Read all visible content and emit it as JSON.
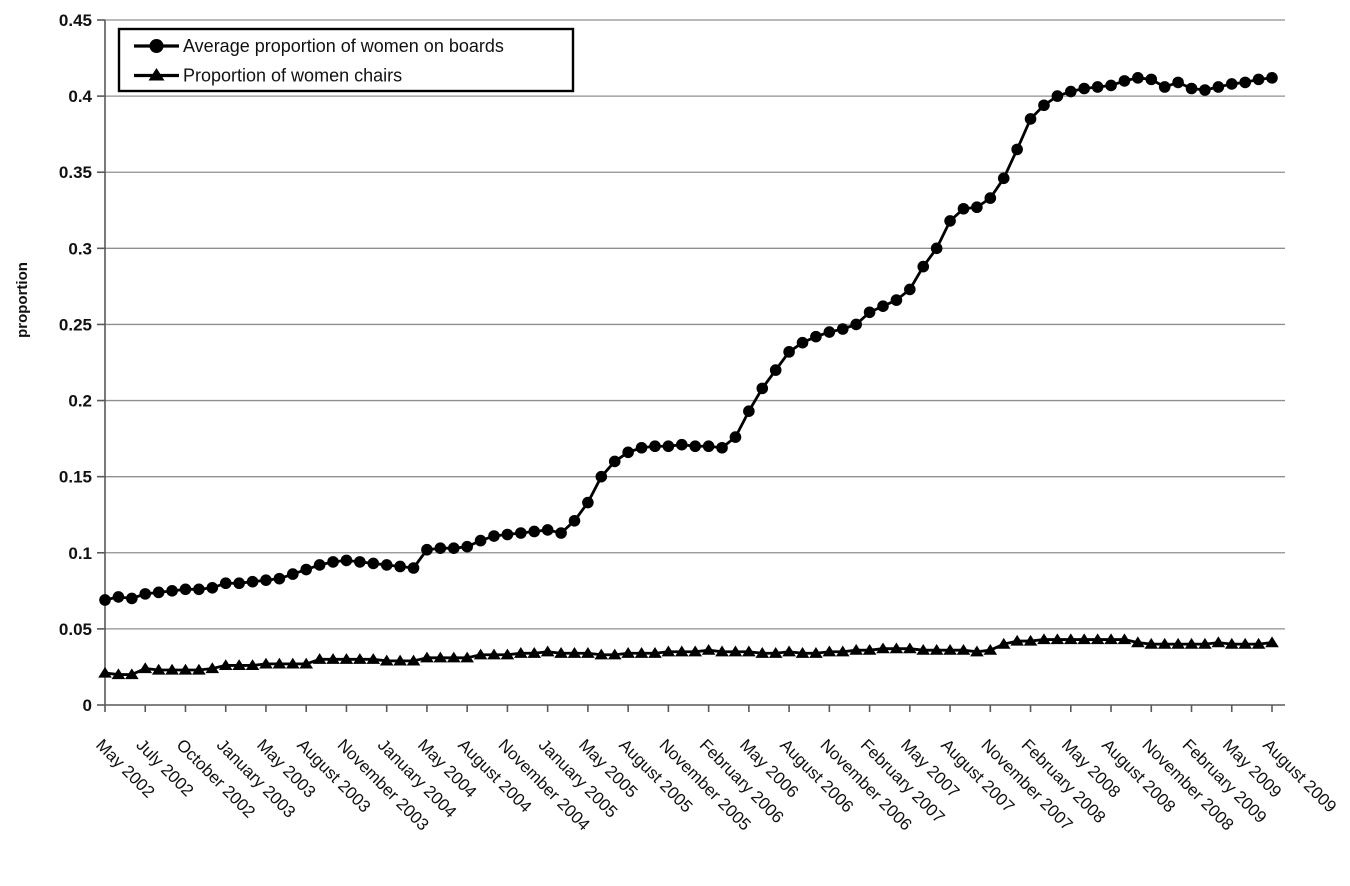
{
  "chart_data": {
    "type": "line",
    "title": "",
    "xlabel": "",
    "ylabel": "proportion",
    "ylim": [
      0,
      0.45
    ],
    "yticks": [
      0,
      0.05,
      0.1,
      0.15,
      0.2,
      0.25,
      0.3,
      0.35,
      0.4,
      0.45
    ],
    "ytick_labels": [
      "0",
      "0.05",
      "0.1",
      "0.15",
      "0.2",
      "0.25",
      "0.3",
      "0.35",
      "0.4",
      "0.45"
    ],
    "grid": "horizontal",
    "legend_position": "top-left",
    "x_tick_label_rotation_deg": 45,
    "n_points": 88,
    "label_every_n_points": 3,
    "categories": [
      "May 2002",
      "July 2002",
      "October 2002",
      "January 2003",
      "May 2003",
      "August 2003",
      "November 2003",
      "January 2004",
      "May 2004",
      "August 2004",
      "November 2004",
      "January 2005",
      "May 2005",
      "August 2005",
      "November 2005",
      "February 2006",
      "May 2006",
      "August 2006",
      "November 2006",
      "February 2007",
      "May 2007",
      "August 2007",
      "November 2007",
      "February 2008",
      "May 2008",
      "August 2008",
      "November 2008",
      "February 2009",
      "May 2009",
      "August 2009"
    ],
    "series": [
      {
        "name": "Average proportion of women on boards",
        "marker": "circle",
        "color": "#000000",
        "values": [
          0.069,
          0.071,
          0.07,
          0.073,
          0.074,
          0.075,
          0.076,
          0.076,
          0.077,
          0.08,
          0.08,
          0.081,
          0.082,
          0.083,
          0.086,
          0.089,
          0.092,
          0.094,
          0.095,
          0.094,
          0.093,
          0.092,
          0.091,
          0.09,
          0.102,
          0.103,
          0.103,
          0.104,
          0.108,
          0.111,
          0.112,
          0.113,
          0.114,
          0.115,
          0.113,
          0.121,
          0.133,
          0.15,
          0.16,
          0.166,
          0.169,
          0.17,
          0.17,
          0.171,
          0.17,
          0.17,
          0.169,
          0.176,
          0.193,
          0.208,
          0.22,
          0.232,
          0.238,
          0.242,
          0.245,
          0.247,
          0.25,
          0.258,
          0.262,
          0.266,
          0.273,
          0.288,
          0.3,
          0.318,
          0.326,
          0.327,
          0.333,
          0.346,
          0.365,
          0.385,
          0.394,
          0.4,
          0.403,
          0.405,
          0.406,
          0.407,
          0.41,
          0.412,
          0.411,
          0.406,
          0.409,
          0.405,
          0.404,
          0.406,
          0.408,
          0.409,
          0.411,
          0.412
        ]
      },
      {
        "name": "Proportion of women chairs",
        "marker": "triangle",
        "color": "#000000",
        "values": [
          0.021,
          0.02,
          0.02,
          0.024,
          0.023,
          0.023,
          0.023,
          0.023,
          0.024,
          0.026,
          0.026,
          0.026,
          0.027,
          0.027,
          0.027,
          0.027,
          0.03,
          0.03,
          0.03,
          0.03,
          0.03,
          0.029,
          0.029,
          0.029,
          0.031,
          0.031,
          0.031,
          0.031,
          0.033,
          0.033,
          0.033,
          0.034,
          0.034,
          0.035,
          0.034,
          0.034,
          0.034,
          0.033,
          0.033,
          0.034,
          0.034,
          0.034,
          0.035,
          0.035,
          0.035,
          0.036,
          0.035,
          0.035,
          0.035,
          0.034,
          0.034,
          0.035,
          0.034,
          0.034,
          0.035,
          0.035,
          0.036,
          0.036,
          0.037,
          0.037,
          0.037,
          0.036,
          0.036,
          0.036,
          0.036,
          0.035,
          0.036,
          0.04,
          0.042,
          0.042,
          0.043,
          0.043,
          0.043,
          0.043,
          0.043,
          0.043,
          0.043,
          0.041,
          0.04,
          0.04,
          0.04,
          0.04,
          0.04,
          0.041,
          0.04,
          0.04,
          0.04,
          0.041
        ]
      }
    ],
    "colors": {
      "series": "#000000",
      "grid": "#8f8f8f",
      "axis": "#595959",
      "text": "#111111",
      "background": "#ffffff",
      "legend_border": "#000000"
    }
  }
}
